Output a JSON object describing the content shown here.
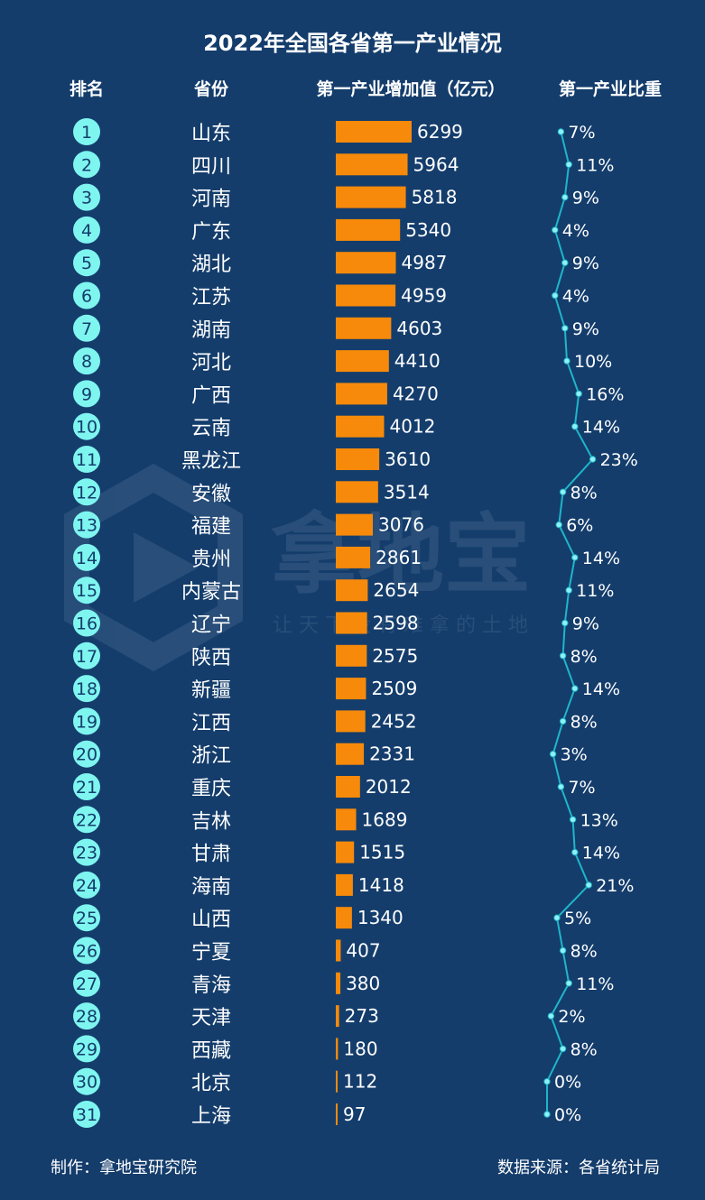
{
  "title": "2022年全国各省第一产业情况",
  "columns": {
    "rank": "排名",
    "province": "省份",
    "value": "第一产业增加值（亿元）",
    "share": "第一产业比重"
  },
  "footer": {
    "author": "制作：拿地宝研究院",
    "source": "数据来源：各省统计局"
  },
  "watermark": {
    "brand": "拿地宝",
    "slogan": "让 天 下 没 有 难 拿 的 土 地"
  },
  "colors": {
    "background": "#143d6c",
    "bar": "#f78a0a",
    "line": "#1fb6c8",
    "rank_badge": "#7ff5f0",
    "rank_text": "#143d6c"
  },
  "chart_data": {
    "type": "bar",
    "title": "2022年全国各省第一产业情况",
    "categories": [
      "山东",
      "四川",
      "河南",
      "广东",
      "湖北",
      "江苏",
      "湖南",
      "河北",
      "广西",
      "云南",
      "黑龙江",
      "安徽",
      "福建",
      "贵州",
      "内蒙古",
      "辽宁",
      "陕西",
      "新疆",
      "江西",
      "浙江",
      "重庆",
      "吉林",
      "甘肃",
      "海南",
      "山西",
      "宁夏",
      "青海",
      "天津",
      "西藏",
      "北京",
      "上海"
    ],
    "ranks": [
      1,
      2,
      3,
      4,
      5,
      6,
      7,
      8,
      9,
      10,
      11,
      12,
      13,
      14,
      15,
      16,
      17,
      18,
      19,
      20,
      21,
      22,
      23,
      24,
      25,
      26,
      27,
      28,
      29,
      30,
      31
    ],
    "series": [
      {
        "name": "第一产业增加值（亿元）",
        "type": "bar",
        "values": [
          6299,
          5964,
          5818,
          5340,
          4987,
          4959,
          4603,
          4410,
          4270,
          4012,
          3610,
          3514,
          3076,
          2861,
          2654,
          2598,
          2575,
          2509,
          2452,
          2331,
          2012,
          1689,
          1515,
          1418,
          1340,
          407,
          380,
          273,
          180,
          112,
          97
        ]
      },
      {
        "name": "第一产业比重",
        "type": "line",
        "unit": "%",
        "values": [
          7,
          11,
          9,
          4,
          9,
          4,
          9,
          10,
          16,
          14,
          23,
          8,
          6,
          14,
          11,
          9,
          8,
          14,
          8,
          3,
          7,
          13,
          14,
          21,
          5,
          8,
          11,
          2,
          8,
          0,
          0
        ]
      }
    ],
    "orientation": "horizontal",
    "grid": false,
    "legend": "none"
  }
}
